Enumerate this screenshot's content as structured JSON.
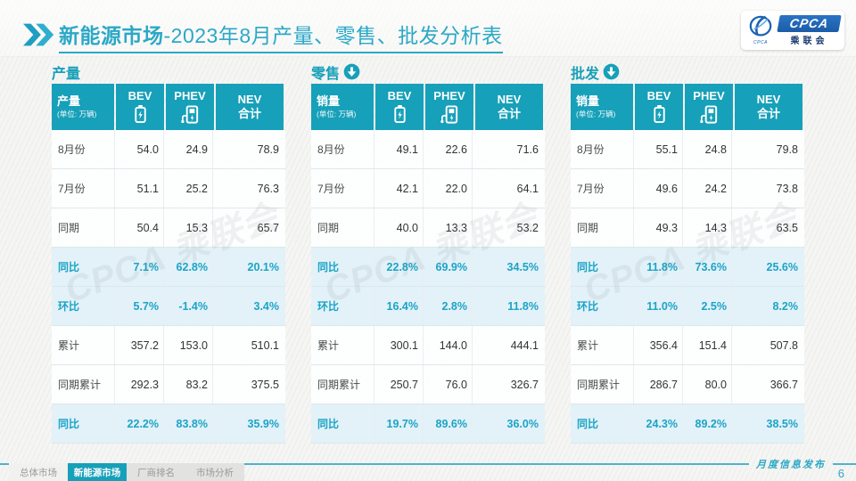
{
  "page": {
    "title_main": "新能源市场",
    "title_suffix": "-2023年8月产量、零售、批发分析表",
    "footer_note": "月度信息发布",
    "page_number": "6"
  },
  "logo": {
    "name": "CPCA",
    "cn": "乘联会",
    "emblem_caption": "CPCA"
  },
  "watermark_text": "CPCA 乘联会",
  "nav": {
    "tabs": [
      {
        "label": "总体市场",
        "active": false
      },
      {
        "label": "新能源市场",
        "active": true
      },
      {
        "label": "厂商排名",
        "active": false
      },
      {
        "label": "市场分析",
        "active": false
      }
    ]
  },
  "tables": [
    {
      "id": "production",
      "section_title": "产量",
      "trend_arrow": false,
      "header": {
        "measure": "产量",
        "unit": "(单位: 万辆)",
        "col_bev": "BEV",
        "col_phev": "PHEV",
        "col_nev_line1": "NEV",
        "col_nev_line2": "合计"
      },
      "rows": [
        {
          "label": "8月份",
          "bev": "54.0",
          "phev": "24.9",
          "nev": "78.9",
          "highlight": false
        },
        {
          "label": "7月份",
          "bev": "51.1",
          "phev": "25.2",
          "nev": "76.3",
          "highlight": false
        },
        {
          "label": "同期",
          "bev": "50.4",
          "phev": "15.3",
          "nev": "65.7",
          "highlight": false
        },
        {
          "label": "同比",
          "bev": "7.1%",
          "phev": "62.8%",
          "nev": "20.1%",
          "highlight": true
        },
        {
          "label": "环比",
          "bev": "5.7%",
          "phev": "-1.4%",
          "nev": "3.4%",
          "highlight": true
        },
        {
          "label": "累计",
          "bev": "357.2",
          "phev": "153.0",
          "nev": "510.1",
          "highlight": false
        },
        {
          "label": "同期累计",
          "bev": "292.3",
          "phev": "83.2",
          "nev": "375.5",
          "highlight": false
        },
        {
          "label": "同比",
          "bev": "22.2%",
          "phev": "83.8%",
          "nev": "35.9%",
          "highlight": true
        }
      ]
    },
    {
      "id": "retail",
      "section_title": "零售",
      "trend_arrow": true,
      "header": {
        "measure": "销量",
        "unit": "(单位: 万辆)",
        "col_bev": "BEV",
        "col_phev": "PHEV",
        "col_nev_line1": "NEV",
        "col_nev_line2": "合计"
      },
      "rows": [
        {
          "label": "8月份",
          "bev": "49.1",
          "phev": "22.6",
          "nev": "71.6",
          "highlight": false
        },
        {
          "label": "7月份",
          "bev": "42.1",
          "phev": "22.0",
          "nev": "64.1",
          "highlight": false
        },
        {
          "label": "同期",
          "bev": "40.0",
          "phev": "13.3",
          "nev": "53.2",
          "highlight": false
        },
        {
          "label": "同比",
          "bev": "22.8%",
          "phev": "69.9%",
          "nev": "34.5%",
          "highlight": true
        },
        {
          "label": "环比",
          "bev": "16.4%",
          "phev": "2.8%",
          "nev": "11.8%",
          "highlight": true
        },
        {
          "label": "累计",
          "bev": "300.1",
          "phev": "144.0",
          "nev": "444.1",
          "highlight": false
        },
        {
          "label": "同期累计",
          "bev": "250.7",
          "phev": "76.0",
          "nev": "326.7",
          "highlight": false
        },
        {
          "label": "同比",
          "bev": "19.7%",
          "phev": "89.6%",
          "nev": "36.0%",
          "highlight": true
        }
      ]
    },
    {
      "id": "wholesale",
      "section_title": "批发",
      "trend_arrow": true,
      "header": {
        "measure": "销量",
        "unit": "(单位: 万辆)",
        "col_bev": "BEV",
        "col_phev": "PHEV",
        "col_nev_line1": "NEV",
        "col_nev_line2": "合计"
      },
      "rows": [
        {
          "label": "8月份",
          "bev": "55.1",
          "phev": "24.8",
          "nev": "79.8",
          "highlight": false
        },
        {
          "label": "7月份",
          "bev": "49.6",
          "phev": "24.2",
          "nev": "73.8",
          "highlight": false
        },
        {
          "label": "同期",
          "bev": "49.3",
          "phev": "14.3",
          "nev": "63.5",
          "highlight": false
        },
        {
          "label": "同比",
          "bev": "11.8%",
          "phev": "73.6%",
          "nev": "25.6%",
          "highlight": true
        },
        {
          "label": "环比",
          "bev": "11.0%",
          "phev": "2.5%",
          "nev": "8.2%",
          "highlight": true
        },
        {
          "label": "累计",
          "bev": "356.4",
          "phev": "151.4",
          "nev": "507.8",
          "highlight": false
        },
        {
          "label": "同期累计",
          "bev": "286.7",
          "phev": "80.0",
          "nev": "366.7",
          "highlight": false
        },
        {
          "label": "同比",
          "bev": "24.3%",
          "phev": "89.2%",
          "nev": "38.5%",
          "highlight": true
        }
      ]
    }
  ],
  "chart_data": [
    {
      "type": "table",
      "title": "产量",
      "unit": "万辆",
      "columns": [
        "BEV",
        "PHEV",
        "NEV合计"
      ],
      "row_labels": [
        "8月份",
        "7月份",
        "同期",
        "同比",
        "环比",
        "累计",
        "同期累计",
        "同比"
      ],
      "rows": [
        [
          54.0,
          24.9,
          78.9
        ],
        [
          51.1,
          25.2,
          76.3
        ],
        [
          50.4,
          15.3,
          65.7
        ],
        [
          "7.1%",
          "62.8%",
          "20.1%"
        ],
        [
          "5.7%",
          "-1.4%",
          "3.4%"
        ],
        [
          357.2,
          153.0,
          510.1
        ],
        [
          292.3,
          83.2,
          375.5
        ],
        [
          "22.2%",
          "83.8%",
          "35.9%"
        ]
      ]
    },
    {
      "type": "table",
      "title": "零售",
      "unit": "万辆",
      "columns": [
        "BEV",
        "PHEV",
        "NEV合计"
      ],
      "row_labels": [
        "8月份",
        "7月份",
        "同期",
        "同比",
        "环比",
        "累计",
        "同期累计",
        "同比"
      ],
      "rows": [
        [
          49.1,
          22.6,
          71.6
        ],
        [
          42.1,
          22.0,
          64.1
        ],
        [
          40.0,
          13.3,
          53.2
        ],
        [
          "22.8%",
          "69.9%",
          "34.5%"
        ],
        [
          "16.4%",
          "2.8%",
          "11.8%"
        ],
        [
          300.1,
          144.0,
          444.1
        ],
        [
          250.7,
          76.0,
          326.7
        ],
        [
          "19.7%",
          "89.6%",
          "36.0%"
        ]
      ]
    },
    {
      "type": "table",
      "title": "批发",
      "unit": "万辆",
      "columns": [
        "BEV",
        "PHEV",
        "NEV合计"
      ],
      "row_labels": [
        "8月份",
        "7月份",
        "同期",
        "同比",
        "环比",
        "累计",
        "同期累计",
        "同比"
      ],
      "rows": [
        [
          55.1,
          24.8,
          79.8
        ],
        [
          49.6,
          24.2,
          73.8
        ],
        [
          49.3,
          14.3,
          63.5
        ],
        [
          "11.8%",
          "73.6%",
          "25.6%"
        ],
        [
          "11.0%",
          "2.5%",
          "8.2%"
        ],
        [
          356.4,
          151.4,
          507.8
        ],
        [
          286.7,
          80.0,
          366.7
        ],
        [
          "24.3%",
          "89.2%",
          "38.5%"
        ]
      ]
    }
  ],
  "colors": {
    "teal": "#17A0B9",
    "title_teal": "#2BA8C6",
    "highlight_bg": "#E3F1F8",
    "highlight_text": "#1BA4C6",
    "logo_blue": "#1C63B0",
    "text_dark": "#333333"
  }
}
